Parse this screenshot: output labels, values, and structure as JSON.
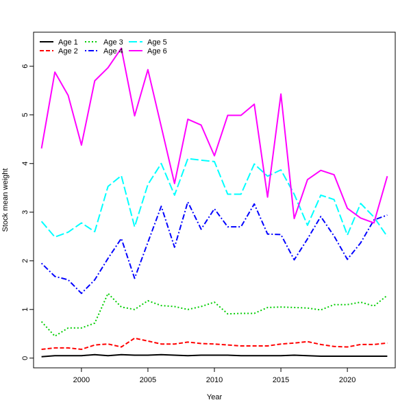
{
  "chart_data": {
    "type": "line",
    "title": "",
    "xlabel": "Year",
    "ylabel": "Stock mean weight",
    "xlim": [
      1996.4,
      2023.6
    ],
    "ylim": [
      -0.2,
      6.7
    ],
    "x_ticks": [
      2000,
      2005,
      2010,
      2015,
      2020
    ],
    "y_ticks": [
      0,
      1,
      2,
      3,
      4,
      5,
      6
    ],
    "legend_position": "top-left",
    "x": [
      1997,
      1998,
      1999,
      2000,
      2001,
      2002,
      2003,
      2004,
      2005,
      2006,
      2007,
      2008,
      2009,
      2010,
      2011,
      2012,
      2013,
      2014,
      2015,
      2016,
      2017,
      2018,
      2019,
      2020,
      2021,
      2022,
      2023
    ],
    "series": [
      {
        "name": "Age 1",
        "color": "#000000",
        "dash": "solid",
        "values": [
          0.03,
          0.05,
          0.05,
          0.05,
          0.07,
          0.05,
          0.07,
          0.06,
          0.06,
          0.07,
          0.06,
          0.05,
          0.06,
          0.06,
          0.06,
          0.05,
          0.05,
          0.05,
          0.05,
          0.06,
          0.05,
          0.04,
          0.04,
          0.04,
          0.04,
          0.04,
          0.04
        ]
      },
      {
        "name": "Age 2",
        "color": "#ff0000",
        "dash": "dashed",
        "values": [
          0.18,
          0.21,
          0.21,
          0.18,
          0.27,
          0.29,
          0.23,
          0.41,
          0.35,
          0.29,
          0.29,
          0.33,
          0.3,
          0.29,
          0.27,
          0.25,
          0.25,
          0.25,
          0.29,
          0.31,
          0.34,
          0.28,
          0.24,
          0.23,
          0.28,
          0.28,
          0.31
        ]
      },
      {
        "name": "Age 3",
        "color": "#00cd00",
        "dash": "dotted",
        "values": [
          0.75,
          0.45,
          0.62,
          0.62,
          0.72,
          1.33,
          1.05,
          1.0,
          1.18,
          1.08,
          1.06,
          1.0,
          1.06,
          1.15,
          0.91,
          0.92,
          0.92,
          1.04,
          1.05,
          1.04,
          1.03,
          0.99,
          1.1,
          1.1,
          1.15,
          1.07,
          1.29
        ]
      },
      {
        "name": "Age 4",
        "color": "#0000ff",
        "dash": "dotdash",
        "values": [
          1.95,
          1.68,
          1.61,
          1.33,
          1.61,
          2.05,
          2.46,
          1.64,
          2.38,
          3.12,
          2.28,
          3.21,
          2.65,
          3.07,
          2.7,
          2.7,
          3.17,
          2.55,
          2.54,
          2.02,
          2.45,
          2.91,
          2.51,
          2.03,
          2.37,
          2.84,
          2.94
        ]
      },
      {
        "name": "Age 5",
        "color": "#00ffff",
        "dash": "longdash",
        "values": [
          2.81,
          2.49,
          2.59,
          2.78,
          2.6,
          3.53,
          3.75,
          2.7,
          3.57,
          4.0,
          3.35,
          4.1,
          4.07,
          4.04,
          3.37,
          3.37,
          3.99,
          3.74,
          3.87,
          3.37,
          2.73,
          3.35,
          3.26,
          2.53,
          3.18,
          2.9,
          2.5
        ]
      },
      {
        "name": "Age 6",
        "color": "#ff00ff",
        "dash": "solid",
        "values": [
          4.31,
          5.88,
          5.4,
          4.38,
          5.7,
          5.97,
          6.37,
          4.98,
          5.93,
          4.76,
          3.59,
          4.91,
          4.79,
          4.16,
          4.99,
          4.99,
          5.22,
          3.31,
          5.43,
          2.87,
          3.67,
          3.86,
          3.77,
          3.08,
          2.88,
          2.78,
          3.74
        ]
      }
    ]
  }
}
